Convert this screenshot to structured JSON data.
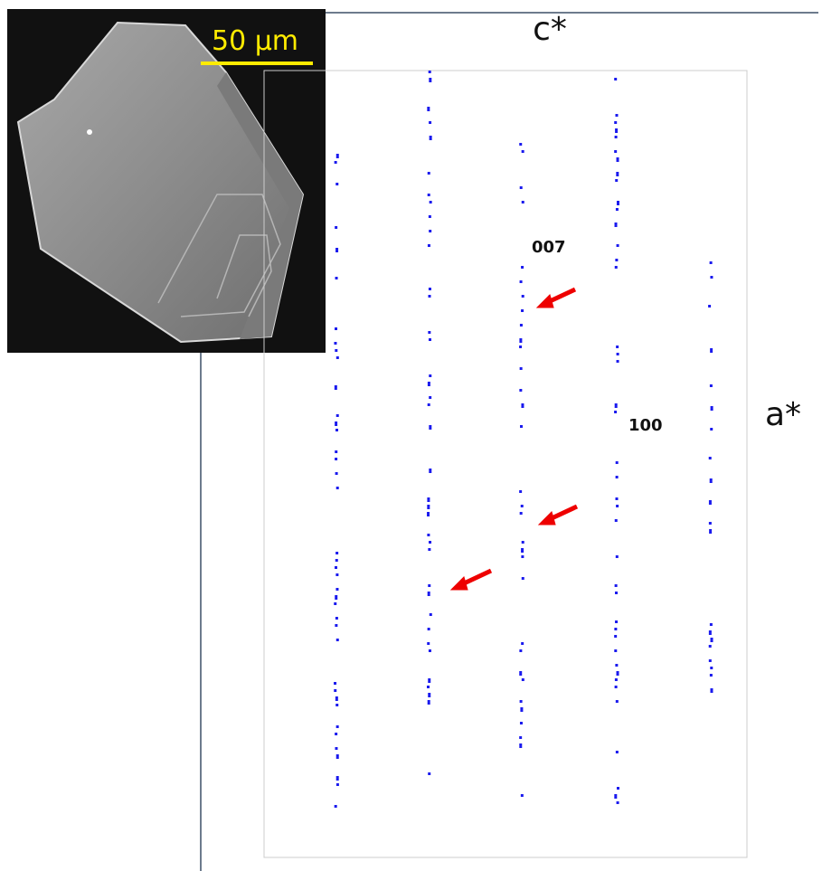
{
  "scale_bar": "50 μm",
  "axes": {
    "c": "c*",
    "a": "a*"
  },
  "reflections": [
    "007",
    "100"
  ]
}
